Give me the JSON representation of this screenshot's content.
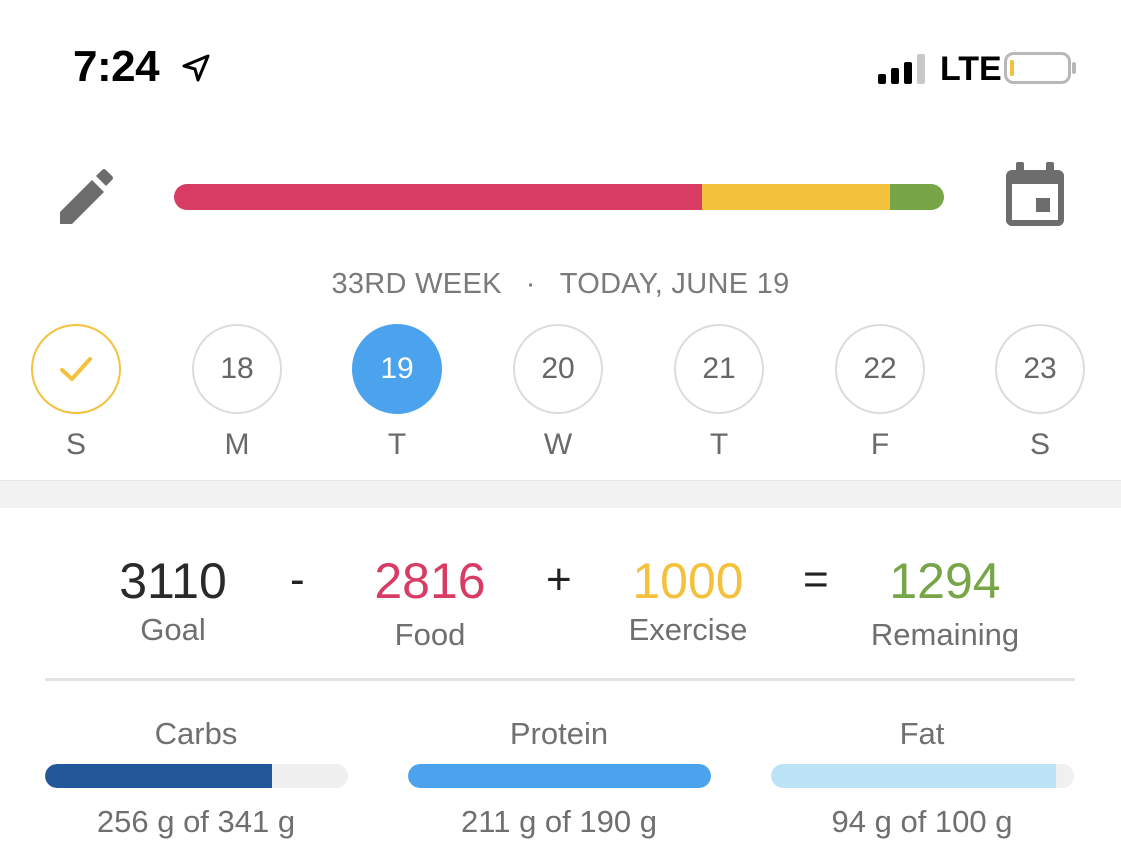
{
  "status": {
    "time": "7:24",
    "carrier": "LTE"
  },
  "header": {
    "week": "33RD WEEK",
    "separator": "·",
    "date": "TODAY, JUNE 19",
    "strip": {
      "food_fraction": 0.686,
      "exercise_fraction": 0.244,
      "remaining_fraction": 0.07
    }
  },
  "days": [
    {
      "number": "",
      "letter": "S",
      "state": "done"
    },
    {
      "number": "18",
      "letter": "M",
      "state": "default"
    },
    {
      "number": "19",
      "letter": "T",
      "state": "selected"
    },
    {
      "number": "20",
      "letter": "W",
      "state": "default"
    },
    {
      "number": "21",
      "letter": "T",
      "state": "default"
    },
    {
      "number": "22",
      "letter": "F",
      "state": "default"
    },
    {
      "number": "23",
      "letter": "S",
      "state": "default"
    }
  ],
  "equation": {
    "goal": {
      "value": "3110",
      "label": "Goal"
    },
    "minus": "-",
    "food": {
      "value": "2816",
      "label": "Food"
    },
    "plus": "+",
    "exercise": {
      "value": "1000",
      "label": "Exercise"
    },
    "equals": "=",
    "remaining": {
      "value": "1294",
      "label": "Remaining"
    }
  },
  "macros": [
    {
      "label": "Carbs",
      "amount": "256 g of 341 g",
      "fraction": 0.75,
      "color": "#22589a"
    },
    {
      "label": "Protein",
      "amount": "211 g of 190 g",
      "fraction": 1.0,
      "color": "#4aa3ec"
    },
    {
      "label": "Fat",
      "amount": "94 g of 100 g",
      "fraction": 0.94,
      "color": "#bde3f6"
    }
  ],
  "colors": {
    "food": "#d83b64",
    "exercise": "#f3c13c",
    "remaining": "#77a548",
    "selected": "#4aa3ec",
    "icon_gray": "#6d6d6d"
  }
}
